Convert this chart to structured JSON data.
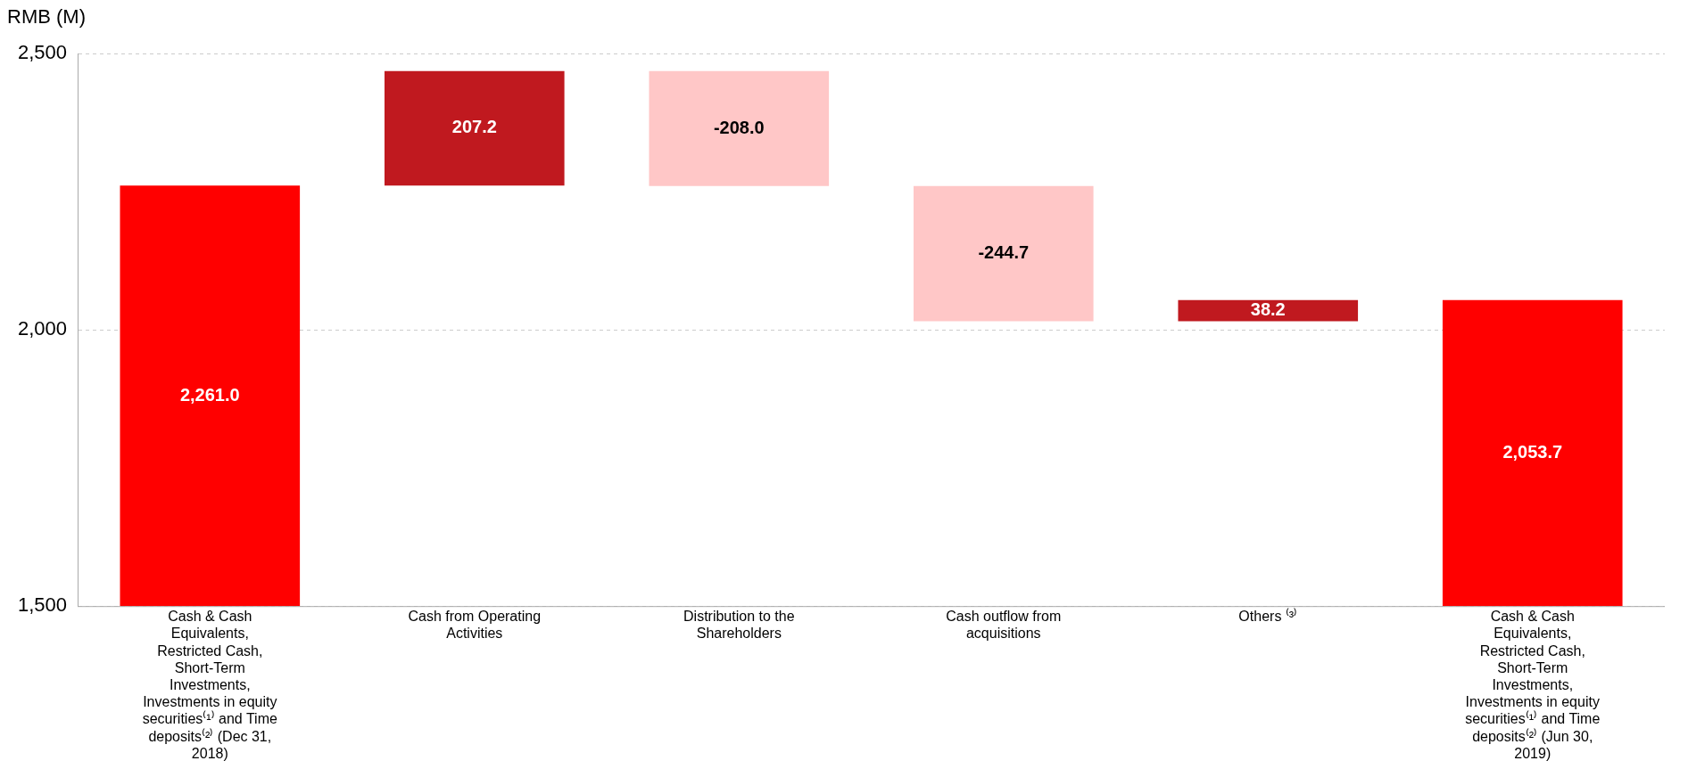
{
  "chart_data": {
    "type": "bar",
    "ylabel": "RMB (M)",
    "categories": [
      "Cash & Cash Equivalents, Restricted Cash, Short-Term Investments, Investments in equity securities⁽¹⁾ and Time deposits⁽²⁾ (Dec 31, 2018)",
      "Cash from Operating Activities",
      "Distribution to the Shareholders",
      "Cash outflow from acquisitions",
      "Others ⁽³⁾",
      "Cash & Cash Equivalents, Restricted Cash, Short-Term Investments, Investments in equity securities⁽¹⁾ and Time deposits⁽²⁾ (Jun 30, 2019)"
    ],
    "values": [
      2261.0,
      207.2,
      -208.0,
      -244.7,
      38.2,
      2053.7
    ],
    "base": [
      null,
      2261.0,
      2468.2,
      2260.2,
      2015.5,
      null
    ],
    "colors": [
      "#ff0000",
      "#c0191f",
      "#ffc7c7",
      "#ffc7c7",
      "#c0191f",
      "#ff0000"
    ],
    "value_labels": [
      "2,261.0",
      "207.2",
      "-208.0",
      "-244.7",
      "38.2",
      "2,053.7"
    ],
    "ylim": [
      1500,
      2500
    ],
    "yticks": [
      {
        "value": 1500,
        "label": "1,500"
      },
      {
        "value": 2000,
        "label": "2,000"
      },
      {
        "value": 2500,
        "label": "2,500"
      }
    ],
    "grid": "y",
    "legend": false
  }
}
